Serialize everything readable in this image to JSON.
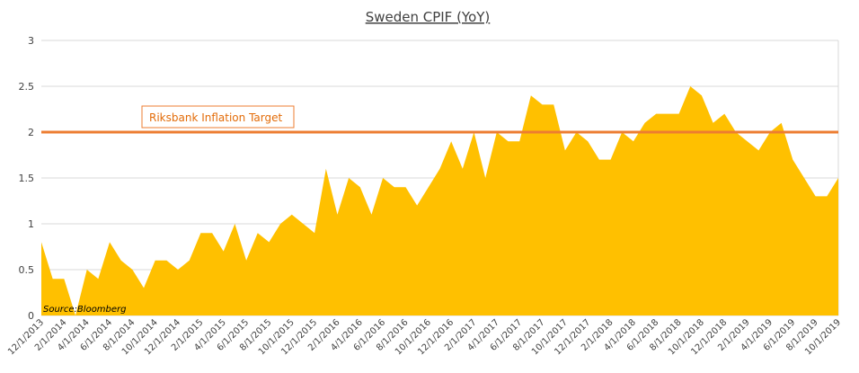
{
  "chart_data": {
    "type": "area",
    "title": "Sweden CPIF (YoY)",
    "xlabel": "",
    "ylabel": "",
    "ylim": [
      0,
      3
    ],
    "yticks": [
      "0",
      "0.5",
      "1",
      "1.5",
      "2",
      "2.5",
      "3"
    ],
    "grid": true,
    "x_tick_labels": [
      "12/1/2013",
      "2/1/2014",
      "4/1/2014",
      "6/1/2014",
      "8/1/2014",
      "10/1/2014",
      "12/1/2014",
      "2/1/2015",
      "4/1/2015",
      "6/1/2015",
      "8/1/2015",
      "10/1/2015",
      "12/1/2015",
      "2/1/2016",
      "4/1/2016",
      "6/1/2016",
      "8/1/2016",
      "10/1/2016",
      "12/1/2016",
      "2/1/2017",
      "4/1/2017",
      "6/1/2017",
      "8/1/2017",
      "10/1/2017",
      "12/1/2017",
      "2/1/2018",
      "4/1/2018",
      "6/1/2018",
      "8/1/2018",
      "10/1/2018",
      "12/1/2018",
      "2/1/2019",
      "4/1/2019",
      "6/1/2019",
      "8/1/2019",
      "10/1/2019"
    ],
    "x": [
      "12/1/2013",
      "1/1/2014",
      "2/1/2014",
      "3/1/2014",
      "4/1/2014",
      "5/1/2014",
      "6/1/2014",
      "7/1/2014",
      "8/1/2014",
      "9/1/2014",
      "10/1/2014",
      "11/1/2014",
      "12/1/2014",
      "1/1/2015",
      "2/1/2015",
      "3/1/2015",
      "4/1/2015",
      "5/1/2015",
      "6/1/2015",
      "7/1/2015",
      "8/1/2015",
      "9/1/2015",
      "10/1/2015",
      "11/1/2015",
      "12/1/2015",
      "1/1/2016",
      "2/1/2016",
      "3/1/2016",
      "4/1/2016",
      "5/1/2016",
      "6/1/2016",
      "7/1/2016",
      "8/1/2016",
      "9/1/2016",
      "10/1/2016",
      "11/1/2016",
      "12/1/2016",
      "1/1/2017",
      "2/1/2017",
      "3/1/2017",
      "4/1/2017",
      "5/1/2017",
      "6/1/2017",
      "7/1/2017",
      "8/1/2017",
      "9/1/2017",
      "10/1/2017",
      "11/1/2017",
      "12/1/2017",
      "1/1/2018",
      "2/1/2018",
      "3/1/2018",
      "4/1/2018",
      "5/1/2018",
      "6/1/2018",
      "7/1/2018",
      "8/1/2018",
      "9/1/2018",
      "10/1/2018",
      "11/1/2018",
      "12/1/2018",
      "1/1/2019",
      "2/1/2019",
      "3/1/2019",
      "4/1/2019",
      "5/1/2019",
      "6/1/2019",
      "7/1/2019",
      "8/1/2019",
      "9/1/2019",
      "10/1/2019"
    ],
    "series": [
      {
        "values": [
          0.8,
          0.4,
          0.4,
          0.0,
          0.5,
          0.4,
          0.8,
          0.6,
          0.5,
          0.3,
          0.6,
          0.6,
          0.5,
          0.6,
          0.9,
          0.9,
          0.7,
          1.0,
          0.6,
          0.9,
          0.8,
          1.0,
          1.1,
          1.0,
          0.9,
          1.6,
          1.1,
          1.5,
          1.4,
          1.1,
          1.5,
          1.4,
          1.4,
          1.2,
          1.4,
          1.6,
          1.9,
          1.6,
          2.0,
          1.5,
          2.0,
          1.9,
          1.9,
          2.4,
          2.3,
          2.3,
          1.8,
          2.0,
          1.9,
          1.7,
          1.7,
          2.0,
          1.9,
          2.1,
          2.2,
          2.2,
          2.2,
          2.5,
          2.4,
          2.1,
          2.2,
          2.0,
          1.9,
          1.8,
          2.0,
          2.1,
          1.7,
          1.5,
          1.3,
          1.3,
          1.5
        ],
        "color": "#FFC000"
      }
    ],
    "reference_line": {
      "label": "Riksbank Inflation Target",
      "value": 2,
      "color": "#ED7D31"
    },
    "source_note": "Source:Bloomberg"
  }
}
